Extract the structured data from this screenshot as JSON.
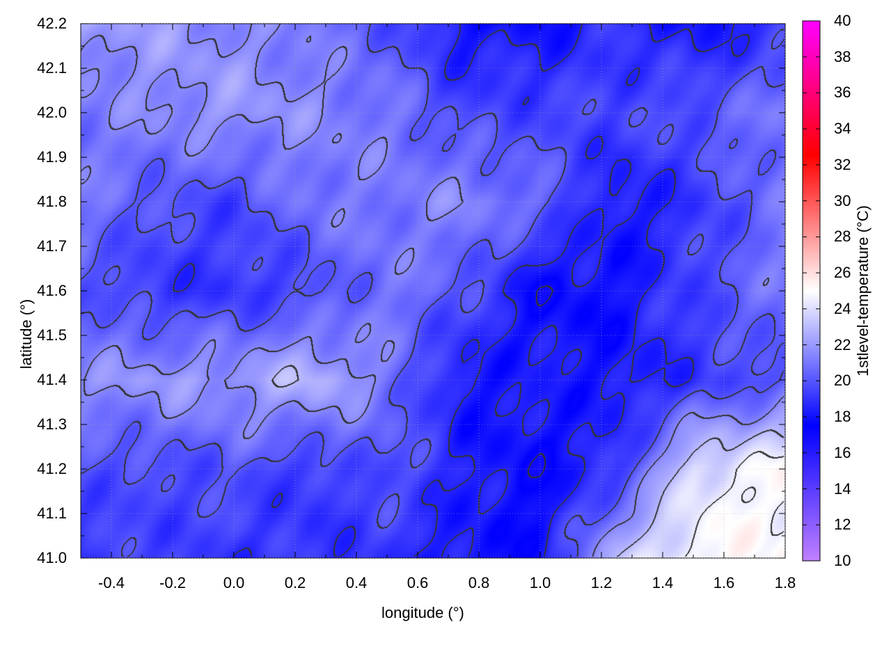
{
  "chart_data": {
    "type": "heatmap",
    "xlabel": "longitude (°)",
    "ylabel": "latitude (°)",
    "colorbar_label": "1stlevel-temperature (°C)",
    "xlim": [
      -0.5,
      1.8
    ],
    "ylim": [
      41.0,
      42.2
    ],
    "zlim": [
      10,
      40
    ],
    "x_ticks": [
      "-0.4",
      "-0.2",
      "0.0",
      "0.2",
      "0.4",
      "0.6",
      "0.8",
      "1.0",
      "1.2",
      "1.4",
      "1.6",
      "1.8"
    ],
    "y_ticks": [
      "41.0",
      "41.1",
      "41.2",
      "41.3",
      "41.4",
      "41.5",
      "41.6",
      "41.7",
      "41.8",
      "41.9",
      "42.0",
      "42.1",
      "42.2"
    ],
    "colorbar_ticks": [
      "10",
      "12",
      "14",
      "16",
      "18",
      "20",
      "22",
      "24",
      "26",
      "28",
      "30",
      "32",
      "34",
      "36",
      "38",
      "40"
    ],
    "colormap": [
      {
        "value": 10,
        "color": "#c080ff"
      },
      {
        "value": 17.5,
        "color": "#0000ff"
      },
      {
        "value": 25,
        "color": "#ffffff"
      },
      {
        "value": 32.5,
        "color": "#ff0000"
      },
      {
        "value": 40,
        "color": "#ff00ff"
      }
    ],
    "contour_color": "#333333",
    "grid": true,
    "grid_lon": [
      -0.5,
      -0.25,
      0.0,
      0.25,
      0.5,
      0.75,
      1.0,
      1.25,
      1.5,
      1.8
    ],
    "grid_lat": [
      42.2,
      42.0,
      41.8,
      41.6,
      41.4,
      41.2,
      41.0
    ],
    "values": [
      [
        22,
        22,
        21.5,
        21,
        20,
        18,
        18,
        19,
        18,
        19
      ],
      [
        21,
        21.5,
        22,
        21.5,
        21,
        19.5,
        19.5,
        19.5,
        20,
        21
      ],
      [
        21,
        20,
        19.5,
        21,
        21,
        21.5,
        20.5,
        18,
        19,
        21
      ],
      [
        20,
        19,
        19,
        19.5,
        21,
        20,
        17.5,
        18,
        19.5,
        21
      ],
      [
        21.5,
        22,
        22,
        23,
        21,
        18,
        18.5,
        18,
        19,
        20
      ],
      [
        20,
        19.5,
        20,
        19,
        20,
        18.5,
        17.5,
        19,
        24,
        25
      ],
      [
        19,
        19.5,
        19,
        19,
        19,
        18,
        18,
        23,
        25,
        25
      ]
    ]
  }
}
